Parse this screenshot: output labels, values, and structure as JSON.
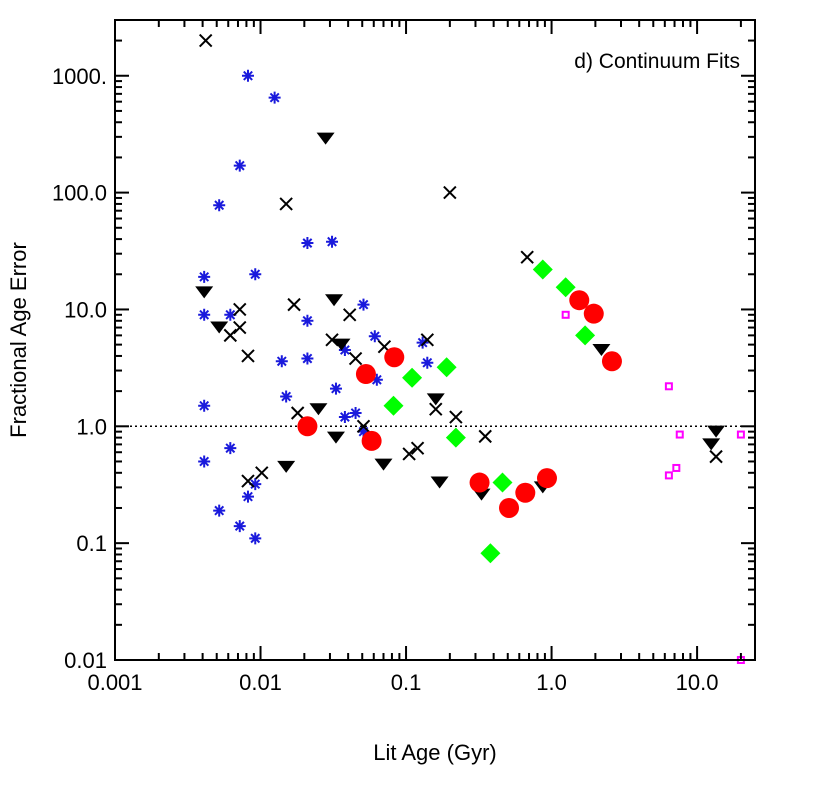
{
  "chart_data": {
    "type": "scatter",
    "title": "",
    "panel_label": "d) Continuum Fits",
    "xlabel": "Lit Age (Gyr)",
    "ylabel": "Fractional Age Error",
    "xscale": "log",
    "yscale": "log",
    "xlim": [
      0.001,
      25
    ],
    "ylim": [
      0.01,
      3000
    ],
    "x_ticks": [
      0.001,
      0.01,
      0.1,
      1.0,
      10.0
    ],
    "x_tick_labels": [
      "0.001",
      "0.01",
      "0.1",
      "1.0",
      "10.0"
    ],
    "y_ticks": [
      0.01,
      0.1,
      1.0,
      10.0,
      100.0,
      1000.0
    ],
    "y_tick_labels": [
      "0.01",
      "0.1",
      "1.0",
      "10.0",
      "100.0",
      "1000."
    ],
    "reference_line": {
      "y": 1.0,
      "style": "dotted"
    },
    "grid": false,
    "legend": "none",
    "series": [
      {
        "name": "blue asterisks",
        "marker": "asterisk",
        "color": "#1a1adc",
        "points": [
          [
            0.0041,
            19
          ],
          [
            0.0041,
            9
          ],
          [
            0.0041,
            1.5
          ],
          [
            0.0041,
            0.5
          ],
          [
            0.0052,
            78
          ],
          [
            0.0052,
            0.19
          ],
          [
            0.0062,
            9
          ],
          [
            0.0062,
            0.65
          ],
          [
            0.0072,
            170
          ],
          [
            0.0072,
            0.14
          ],
          [
            0.0082,
            1000
          ],
          [
            0.0082,
            0.25
          ],
          [
            0.0092,
            20
          ],
          [
            0.0092,
            0.32
          ],
          [
            0.0092,
            0.11
          ],
          [
            0.0125,
            650
          ],
          [
            0.014,
            3.6
          ],
          [
            0.015,
            1.8
          ],
          [
            0.021,
            37
          ],
          [
            0.021,
            8
          ],
          [
            0.021,
            3.8
          ],
          [
            0.031,
            38
          ],
          [
            0.033,
            2.1
          ],
          [
            0.038,
            4.5
          ],
          [
            0.038,
            1.2
          ],
          [
            0.045,
            1.3
          ],
          [
            0.051,
            11
          ],
          [
            0.051,
            0.9
          ],
          [
            0.061,
            5.9
          ],
          [
            0.063,
            2.5
          ],
          [
            0.13,
            5.2
          ],
          [
            0.14,
            3.5
          ]
        ]
      },
      {
        "name": "black crosses",
        "marker": "x",
        "color": "#000000",
        "points": [
          [
            0.0042,
            2000
          ],
          [
            0.0062,
            6
          ],
          [
            0.0072,
            10
          ],
          [
            0.0072,
            7
          ],
          [
            0.0082,
            4
          ],
          [
            0.0082,
            0.34
          ],
          [
            0.0102,
            0.4
          ],
          [
            0.015,
            80
          ],
          [
            0.017,
            11
          ],
          [
            0.018,
            1.3
          ],
          [
            0.031,
            5.5
          ],
          [
            0.041,
            9
          ],
          [
            0.045,
            3.8
          ],
          [
            0.051,
            1.0
          ],
          [
            0.071,
            4.8
          ],
          [
            0.105,
            0.58
          ],
          [
            0.12,
            0.65
          ],
          [
            0.14,
            5.5
          ],
          [
            0.16,
            1.4
          ],
          [
            0.2,
            100
          ],
          [
            0.22,
            1.2
          ],
          [
            0.35,
            0.82
          ],
          [
            0.68,
            28
          ],
          [
            13.5,
            0.55
          ]
        ]
      },
      {
        "name": "black triangles",
        "marker": "triangle-down",
        "color": "#000000",
        "points": [
          [
            0.0041,
            14
          ],
          [
            0.0052,
            7
          ],
          [
            0.015,
            0.45
          ],
          [
            0.025,
            1.4
          ],
          [
            0.028,
            290
          ],
          [
            0.032,
            12
          ],
          [
            0.033,
            0.8
          ],
          [
            0.036,
            5
          ],
          [
            0.07,
            0.47
          ],
          [
            0.16,
            1.7
          ],
          [
            0.17,
            0.33
          ],
          [
            0.33,
            0.26
          ],
          [
            0.87,
            0.3
          ],
          [
            2.2,
            4.5
          ],
          [
            12.5,
            0.7
          ],
          [
            13.5,
            0.9
          ]
        ]
      },
      {
        "name": "red circles",
        "marker": "circle",
        "color": "#ff0000",
        "points": [
          [
            0.021,
            1.0
          ],
          [
            0.053,
            2.8
          ],
          [
            0.058,
            0.75
          ],
          [
            0.083,
            3.9
          ],
          [
            0.32,
            0.33
          ],
          [
            0.51,
            0.2
          ],
          [
            0.66,
            0.27
          ],
          [
            0.93,
            0.36
          ],
          [
            1.55,
            12
          ],
          [
            1.95,
            9.2
          ],
          [
            2.6,
            3.6
          ]
        ]
      },
      {
        "name": "green diamonds",
        "marker": "diamond",
        "color": "#00ff00",
        "points": [
          [
            0.082,
            1.5
          ],
          [
            0.11,
            2.6
          ],
          [
            0.19,
            3.2
          ],
          [
            0.22,
            0.8
          ],
          [
            0.38,
            0.082
          ],
          [
            0.46,
            0.33
          ],
          [
            0.87,
            22
          ],
          [
            1.25,
            15.5
          ],
          [
            1.7,
            6
          ]
        ]
      },
      {
        "name": "magenta squares",
        "marker": "square",
        "color": "#ff00ff",
        "points": [
          [
            1.25,
            9
          ],
          [
            6.4,
            2.2
          ],
          [
            6.4,
            0.38
          ],
          [
            7.2,
            0.44
          ],
          [
            7.6,
            0.85
          ],
          [
            20,
            0.85
          ],
          [
            20,
            0.01
          ]
        ]
      }
    ]
  }
}
